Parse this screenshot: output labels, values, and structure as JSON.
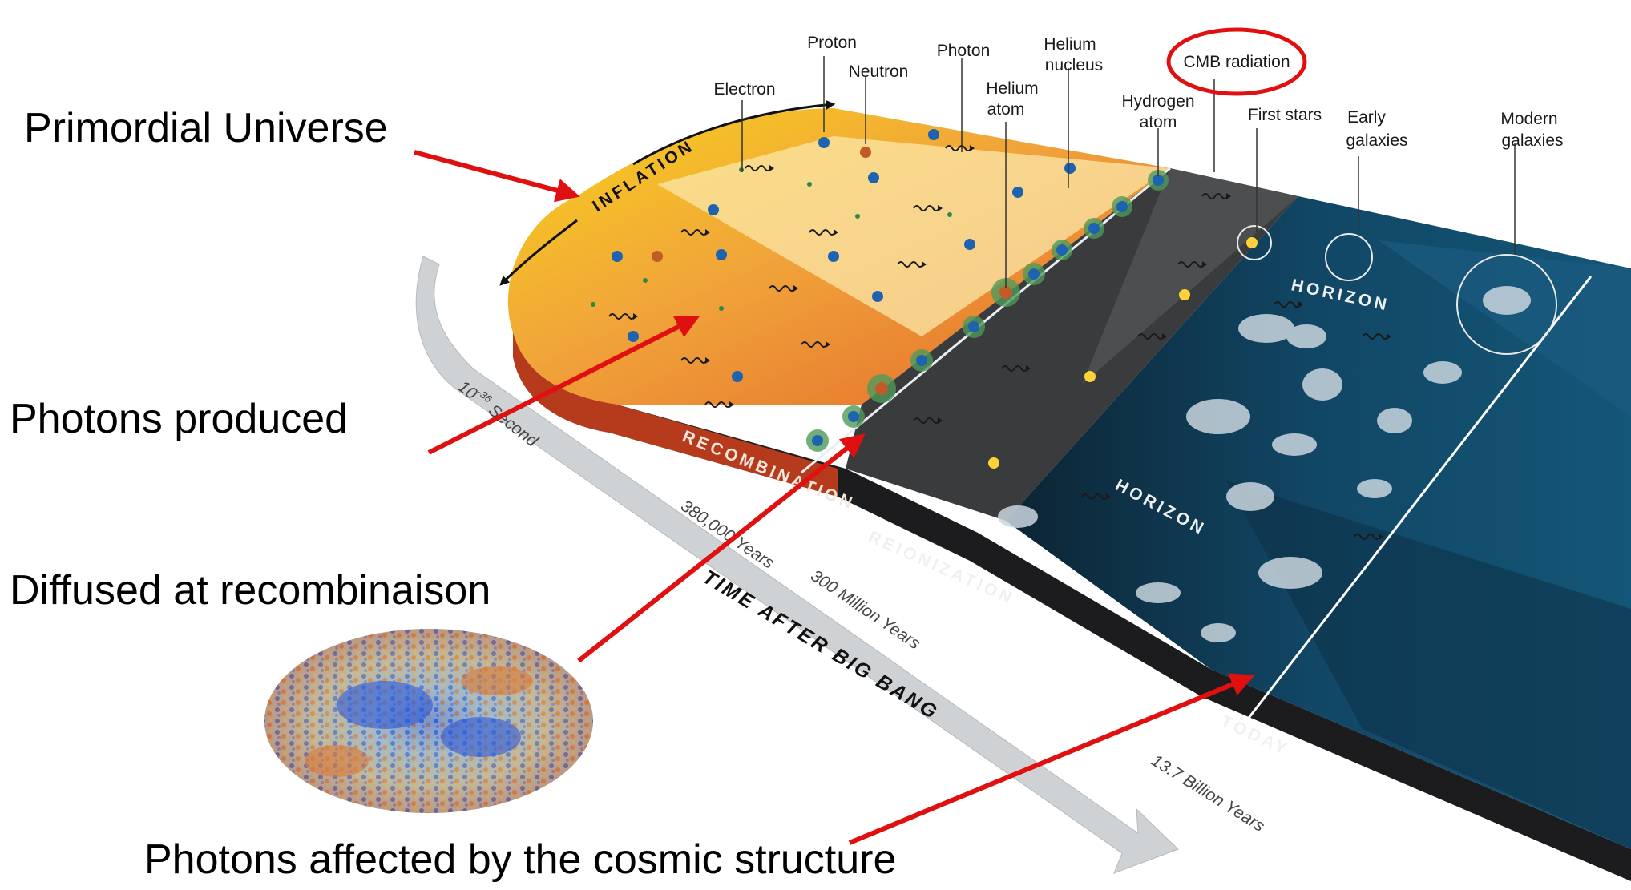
{
  "captions": {
    "primordial": "Primordial Universe",
    "photons_produced": "Photons produced",
    "diffused": "Diffused at recombinaison",
    "affected": "Photons affected by the cosmic structure"
  },
  "labels": {
    "proton": "Proton",
    "neutron": "Neutron",
    "electron": "Electron",
    "photon": "Photon",
    "helium_atom_1": "Helium",
    "helium_atom_2": "atom",
    "helium_nucleus_1": "Helium",
    "helium_nucleus_2": "nucleus",
    "hydrogen_atom_1": "Hydrogen",
    "hydrogen_atom_2": "atom",
    "cmb": "CMB radiation",
    "first_stars": "First stars",
    "early_galaxies_1": "Early",
    "early_galaxies_2": "galaxies",
    "modern_galaxies_1": "Modern",
    "modern_galaxies_2": "galaxies"
  },
  "eras": {
    "inflation": "INFLATION",
    "recombination": "RECOMBINATION",
    "reionization": "REIONIZATION",
    "horizon_top": "HORIZON",
    "horizon_bottom": "HORIZON",
    "today": "TODAY"
  },
  "timeline": {
    "t0_base": "10",
    "t0_exp": "-36",
    "t0_unit": "Second",
    "t1": "380,000 Years",
    "t2": "300 Million Years",
    "t3": "13.7 Billion Years",
    "axis_title": "TIME AFTER BIG BANG"
  },
  "colors": {
    "annotation_arrow": "#e01010",
    "cmb_circle": "#e01010",
    "early_universe_yellow": "#f5c419",
    "early_universe_orange": "#e8782a",
    "dark_ages": "#3a3a3c",
    "late_universe_blue": "#0f4a6a"
  }
}
